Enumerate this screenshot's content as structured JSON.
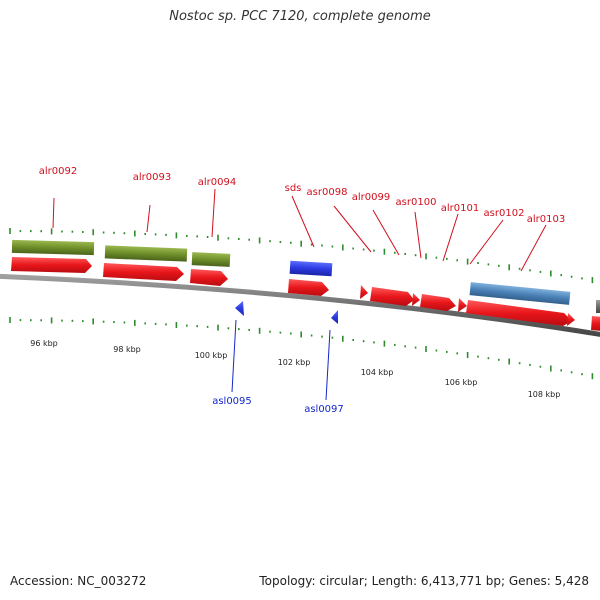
{
  "title": "Nostoc sp. PCC 7120, complete genome",
  "footer": {
    "accession": "Accession: NC_003272",
    "stats": "Topology: circular; Length: 6,413,771 bp; Genes: 5,428"
  },
  "colors": {
    "gene_forward": "#e8161b",
    "gene_reverse": "#1330e0",
    "cds_olive": "#6f8f2a",
    "cds_blue": "#2c3be0",
    "cds_steel": "#4b82b8",
    "tick_major": "#2e8b2e",
    "backbone": "#6e6e6e",
    "label_red": "#d0101e",
    "label_blue": "#1328c8"
  },
  "scale_labels": [
    "96 kbp",
    "98 kbp",
    "100 kbp",
    "102 kbp",
    "104 kbp",
    "106 kbp",
    "108 kbp"
  ],
  "genes": [
    {
      "name": "alr0092",
      "strand": "+",
      "color": "label_red"
    },
    {
      "name": "alr0093",
      "strand": "+",
      "color": "label_red"
    },
    {
      "name": "alr0094",
      "strand": "+",
      "color": "label_red"
    },
    {
      "name": "asl0095",
      "strand": "-",
      "color": "label_blue"
    },
    {
      "name": "sds",
      "strand": "+",
      "color": "label_red"
    },
    {
      "name": "asl0097",
      "strand": "-",
      "color": "label_blue"
    },
    {
      "name": "asr0098",
      "strand": "+",
      "color": "label_red"
    },
    {
      "name": "alr0099",
      "strand": "+",
      "color": "label_red"
    },
    {
      "name": "asr0100",
      "strand": "+",
      "color": "label_red"
    },
    {
      "name": "alr0101",
      "strand": "+",
      "color": "label_red"
    },
    {
      "name": "asr0102",
      "strand": "+",
      "color": "label_red"
    },
    {
      "name": "alr0103",
      "strand": "+",
      "color": "label_red"
    }
  ]
}
